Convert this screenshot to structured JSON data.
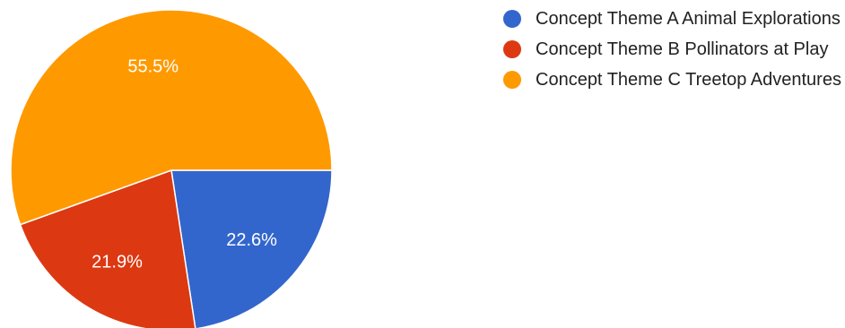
{
  "chart_data": {
    "type": "pie",
    "categories": [
      "Concept Theme A Animal Explorations",
      "Concept Theme B Pollinators at Play",
      "Concept Theme C Treetop Adventures"
    ],
    "values": [
      22.6,
      21.9,
      55.5
    ],
    "labels": [
      "22.6%",
      "21.9%",
      "55.5%"
    ],
    "colors": [
      "#3366cc",
      "#dc3912",
      "#ff9900"
    ],
    "title": "",
    "legend_position": "right",
    "start_angle": "3 o'clock, clockwise"
  }
}
